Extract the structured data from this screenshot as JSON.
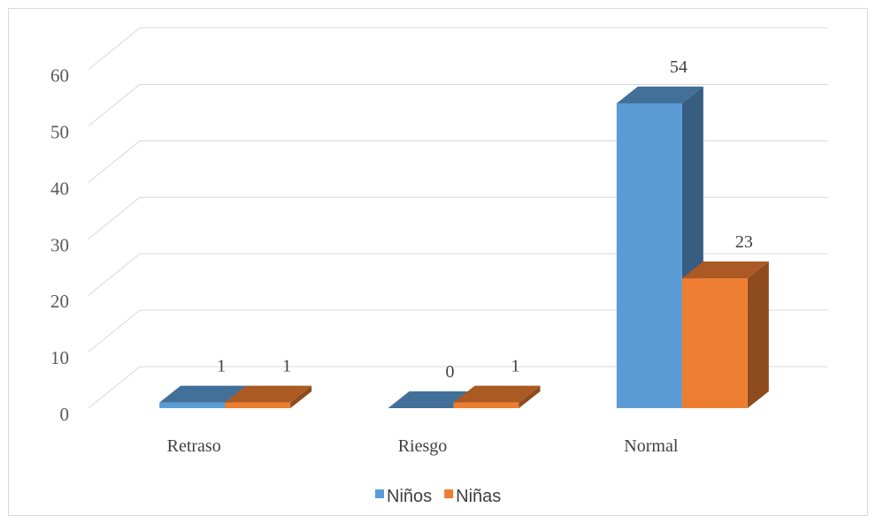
{
  "chart_data": {
    "type": "bar",
    "style": "3d-clustered-column",
    "categories": [
      "Retraso",
      "Riesgo",
      "Normal"
    ],
    "series": [
      {
        "name": "Niños",
        "values": [
          1,
          0,
          54
        ],
        "color": "#5b9bd5"
      },
      {
        "name": "Niñas",
        "values": [
          1,
          1,
          23
        ],
        "color": "#ed7d31"
      }
    ],
    "ylim": [
      0,
      60
    ],
    "yticks": [
      0,
      10,
      20,
      30,
      40,
      50,
      60
    ],
    "grid": true,
    "legend_position": "bottom",
    "data_labels": true
  }
}
